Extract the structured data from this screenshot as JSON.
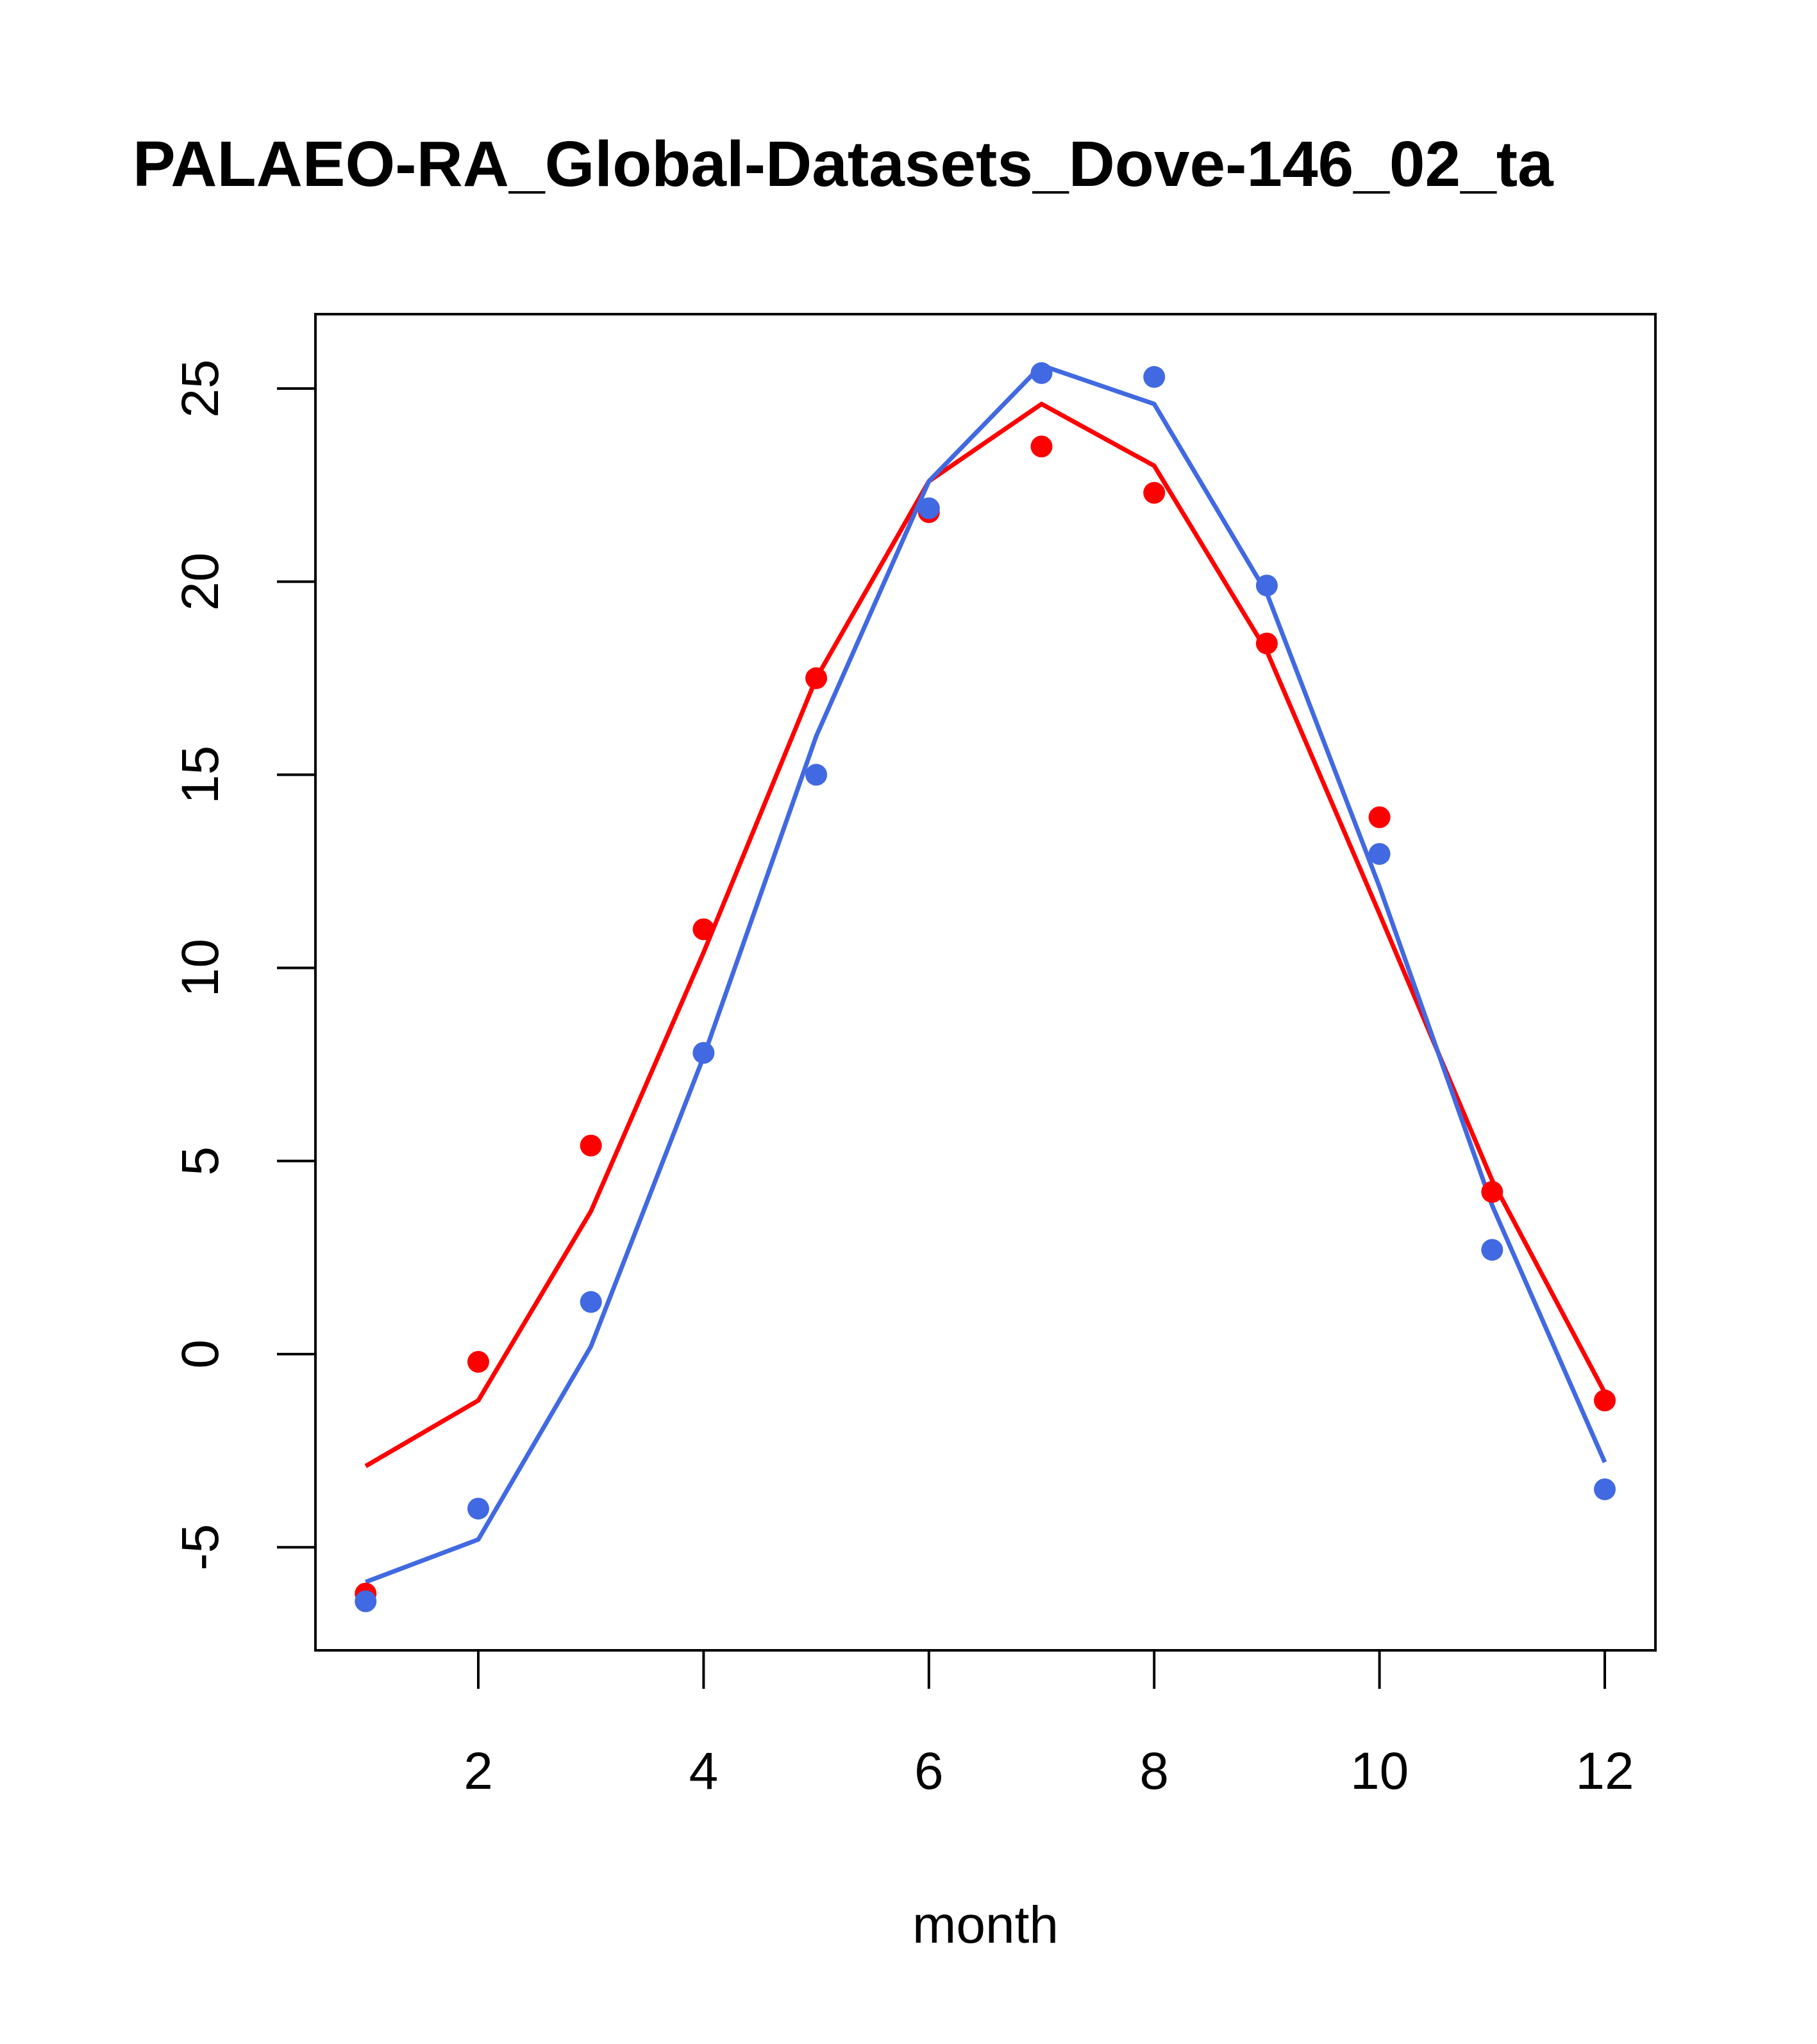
{
  "chart_data": {
    "type": "line",
    "title": "PALAEO-RA_Global-Datasets_Dove-146_02_ta",
    "xlabel": "month",
    "ylabel": "",
    "xlim": [
      0.78,
      12.45
    ],
    "ylim": [
      -7.6,
      26.9
    ],
    "xticks": [
      2,
      4,
      6,
      8,
      10,
      12
    ],
    "xtick_labels": [
      "2",
      "4",
      "6",
      "8",
      "10",
      "12"
    ],
    "yticks": [
      -5,
      0,
      5,
      10,
      15,
      20,
      25
    ],
    "ytick_labels": [
      "-5",
      "0",
      "5",
      "10",
      "15",
      "20",
      "25"
    ],
    "x": [
      1,
      2,
      3,
      4,
      5,
      6,
      7,
      8,
      9,
      10,
      11,
      12
    ],
    "series": [
      {
        "name": "red-points",
        "kind": "points",
        "color": "#ff0000",
        "values": [
          -6.2,
          -0.2,
          5.4,
          11.0,
          17.5,
          21.8,
          23.5,
          22.3,
          18.4,
          13.9,
          4.2,
          -1.2
        ]
      },
      {
        "name": "red-line",
        "kind": "line",
        "color": "#ff0000",
        "values": [
          -2.9,
          -1.2,
          3.7,
          10.4,
          17.5,
          22.6,
          24.6,
          23.0,
          18.2,
          11.4,
          4.5,
          -1.0
        ]
      },
      {
        "name": "blue-points",
        "kind": "points",
        "color": "#4169e1",
        "values": [
          -6.4,
          -4.0,
          1.35,
          7.8,
          15.0,
          21.9,
          25.4,
          25.3,
          19.9,
          12.95,
          2.7,
          -3.5
        ]
      },
      {
        "name": "blue-line",
        "kind": "line",
        "color": "#4169e1",
        "values": [
          -5.9,
          -4.8,
          0.2,
          7.7,
          16.0,
          22.6,
          25.6,
          24.6,
          19.7,
          12.1,
          3.85,
          -2.8
        ]
      }
    ]
  }
}
